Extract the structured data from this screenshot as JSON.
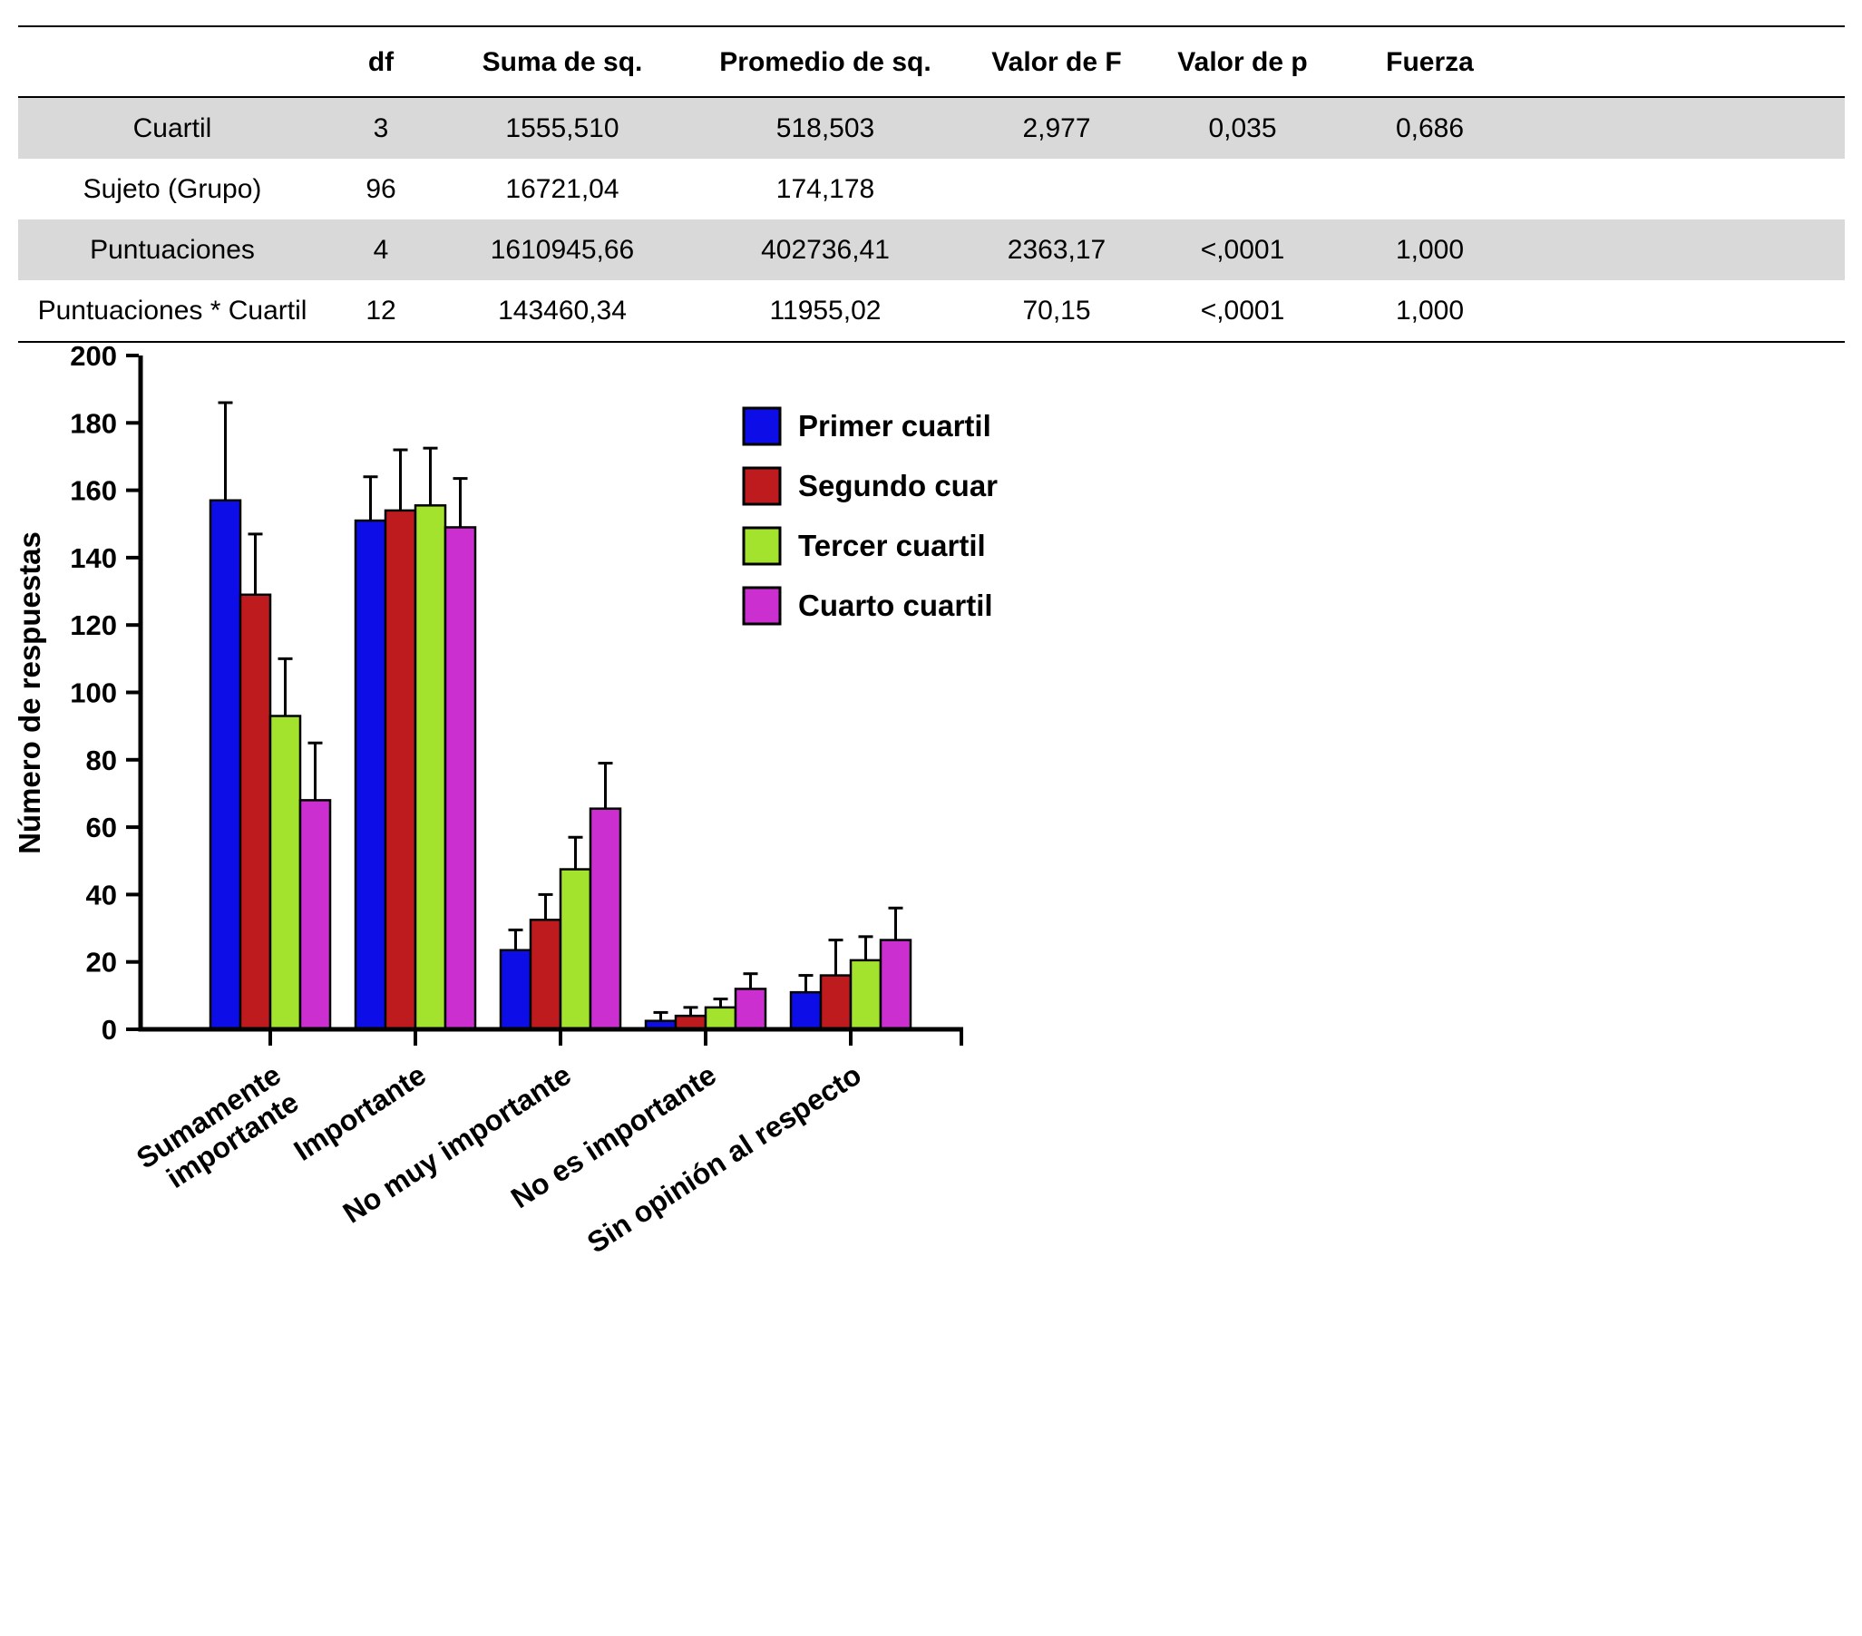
{
  "table": {
    "columns": [
      "",
      "df",
      "Suma de sq.",
      "Promedio de sq.",
      "Valor de F",
      "Valor de p",
      "Fuerza"
    ],
    "rows": [
      {
        "label": "Cuartil",
        "values": [
          "3",
          "1555,510",
          "518,503",
          "2,977",
          "0,035",
          "0,686"
        ],
        "shaded": true
      },
      {
        "label": "Sujeto (Grupo)",
        "values": [
          "96",
          "16721,04",
          "174,178",
          "",
          "",
          ""
        ],
        "shaded": false
      },
      {
        "label": "Puntuaciones",
        "values": [
          "4",
          "1610945,66",
          "402736,41",
          "2363,17",
          "<,0001",
          "1,000"
        ],
        "shaded": true
      },
      {
        "label": "Puntuaciones * Cuartil",
        "values": [
          "12",
          "143460,34",
          "11955,02",
          "70,15",
          "<,0001",
          "1,000"
        ],
        "shaded": false
      }
    ],
    "shade_color": "#D9D9D9"
  },
  "chart_data": {
    "type": "bar",
    "title": "",
    "xlabel": "",
    "ylabel": "Número de respuestas",
    "ylim": [
      0,
      200
    ],
    "ytick_step": 20,
    "grid": false,
    "legend_position": "upper-right-inside",
    "categories": [
      "Sumamente\nimportante",
      "Importante",
      "No muy importante",
      "No es importante",
      "Sin opinión al respecto"
    ],
    "series": [
      {
        "name": "Primer cuartil",
        "color": "#0D0DE8",
        "values": [
          157,
          151,
          23.5,
          2.5,
          11
        ],
        "errors": [
          29,
          13,
          6,
          2.5,
          5
        ]
      },
      {
        "name": "Segundo cuartil",
        "color": "#BE1B1E",
        "values": [
          129,
          154,
          32.5,
          4,
          16
        ],
        "errors": [
          18,
          18,
          7.5,
          2.5,
          10.5
        ]
      },
      {
        "name": "Tercer cuartil",
        "color": "#A3E32E",
        "values": [
          93,
          155.5,
          47.5,
          6.5,
          20.5
        ],
        "errors": [
          17,
          17,
          9.5,
          2.5,
          7
        ]
      },
      {
        "name": "Cuarto cuartil",
        "color": "#CC2FD0",
        "values": [
          68,
          149,
          65.5,
          12,
          26.5
        ],
        "errors": [
          17,
          14.5,
          13.5,
          4.5,
          9.5
        ]
      }
    ]
  }
}
